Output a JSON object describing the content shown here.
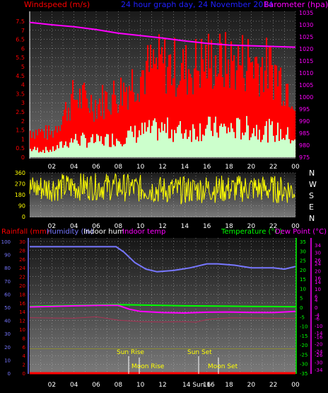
{
  "colors": {
    "wind_axis": "#ff0000",
    "baro_axis": "#ff00ff",
    "title": "#2020ff",
    "x_ticks": "#ffffff",
    "dir_axis": "#ffff00",
    "compass": "#ffffff",
    "rain": "#ff0000",
    "humidity": "#7777ff",
    "indoor_hum": "#ffffff",
    "indoor_temp": "#ff00ff",
    "temperature": "#00ff00",
    "dewpoint": "#ff00ff",
    "left2_axis": "#ff0000",
    "hum_axis": "#7777ff",
    "temp_axis": "#00ff00",
    "dew_axis": "#ff00ff",
    "astro": "#ffff00"
  },
  "labels": {
    "wind": "Windspeed (m/s)",
    "title": "24 hour graph day, 24 November 2014",
    "baro": "Barometer (hpa)",
    "rain": "Rainfall (mm)",
    "humidity": "Humidity (%)",
    "indoor_hum": "Indoor hum",
    "indoor_temp": "Indoor temp",
    "temperature": "Temperature (°C)",
    "dewpoint": "Dew Point (°C)"
  },
  "x_ticks": [
    "02",
    "04",
    "06",
    "08",
    "10",
    "12",
    "14",
    "16",
    "18",
    "20",
    "22",
    "00"
  ],
  "compass": [
    "N",
    "W",
    "S",
    "E",
    "N"
  ],
  "astro": {
    "sun_rise": "Sun Rise",
    "sun_set": "Sun Set",
    "moon_rise": "Moon Rise",
    "moon_set": "Moon Set",
    "sun_set_tick": "14 Sun 16"
  },
  "chart_data": [
    {
      "type": "area",
      "title": "24 hour graph day, 24 November 2014",
      "x_ticks": [
        "02",
        "04",
        "06",
        "08",
        "10",
        "12",
        "14",
        "16",
        "18",
        "20",
        "22",
        "00"
      ],
      "wind_axis": {
        "label": "Windspeed (m/s)",
        "ylim": [
          0,
          7.5
        ],
        "ticks": [
          "0",
          "0.5",
          "1",
          "1.5",
          "2",
          "2.5",
          "3",
          "3.5",
          "4",
          "4.5",
          "5",
          "5.5",
          "6",
          "6.5",
          "7",
          "7.5"
        ]
      },
      "baro_axis": {
        "label": "Barometer (hpa)",
        "ylim": [
          975,
          1035
        ],
        "ticks": [
          "975",
          "980",
          "985",
          "990",
          "995",
          "1000",
          "1005",
          "1010",
          "1015",
          "1020",
          "1025",
          "1030",
          "1035"
        ]
      },
      "series": [
        {
          "name": "Barometer",
          "x": [
            0,
            2,
            4,
            6,
            8,
            10,
            12,
            14,
            16,
            18,
            20,
            22,
            24
          ],
          "values": [
            1031,
            1030,
            1029.2,
            1028,
            1026.5,
            1025.5,
            1024.5,
            1023.3,
            1022.3,
            1021.6,
            1021.3,
            1021,
            1020.7
          ]
        },
        {
          "name": "Windspeed",
          "x": [
            0,
            2,
            4,
            6,
            8,
            10,
            12,
            14,
            16,
            18,
            20,
            22,
            24
          ],
          "values": [
            0.8,
            0.7,
            1.8,
            1.6,
            1.9,
            2.5,
            2.8,
            2.6,
            2.9,
            2.8,
            2.9,
            2.6,
            1.9
          ]
        }
      ]
    },
    {
      "type": "scatter",
      "x_ticks": [
        "02",
        "04",
        "06",
        "08",
        "10",
        "12",
        "14",
        "16",
        "18",
        "20",
        "22",
        "00"
      ],
      "y_axis": {
        "ylim": [
          0,
          360
        ],
        "ticks": [
          "0",
          "90",
          "180",
          "270",
          "360"
        ]
      },
      "compass": [
        "N",
        "W",
        "S",
        "E",
        "N"
      ],
      "series": [
        {
          "name": "Wind direction",
          "x": [
            0,
            2,
            4,
            6,
            8,
            10,
            12,
            14,
            16,
            18,
            20,
            22,
            24
          ],
          "values": [
            230,
            240,
            245,
            250,
            245,
            230,
            220,
            215,
            230,
            225,
            235,
            225,
            215
          ]
        }
      ]
    },
    {
      "type": "line",
      "x_ticks": [
        "02",
        "04",
        "06",
        "08",
        "10",
        "12",
        "14",
        "16",
        "18",
        "20",
        "22",
        "00"
      ],
      "rain_axis": {
        "label": "Rainfall (mm)",
        "ylim": [
          0,
          30
        ],
        "ticks": [
          "0",
          "2",
          "4",
          "6",
          "8",
          "10",
          "12",
          "14",
          "16",
          "18",
          "20",
          "22",
          "24",
          "26",
          "28",
          "30"
        ]
      },
      "humidity_axis": {
        "label": "Humidity (%)",
        "ylim": [
          0,
          100
        ],
        "ticks": [
          "0",
          "10",
          "20",
          "30",
          "40",
          "50",
          "60",
          "70",
          "80",
          "90",
          "100"
        ]
      },
      "temp_axis": {
        "label": "Temperature (°C)",
        "ylim": [
          -35,
          35
        ],
        "ticks": [
          "-35",
          "-30",
          "-25",
          "-20",
          "-15",
          "-10",
          "-5",
          "0",
          "5",
          "10",
          "15",
          "20",
          "25",
          "30",
          "35"
        ]
      },
      "dew_axis": {
        "label": "Dew Point (°C)",
        "ylim": [
          -36,
          36
        ],
        "ticks": [
          "-36",
          "-34",
          "-30",
          "-26",
          "-24",
          "-20",
          "-16",
          "-14",
          "-10",
          "-6",
          "-4",
          "0",
          "4",
          "6",
          "10",
          "14",
          "16",
          "20",
          "24",
          "26",
          "30",
          "34",
          "36"
        ]
      },
      "series": [
        {
          "name": "Humidity",
          "x": [
            0,
            2,
            4,
            6,
            7.8,
            8.5,
            9.5,
            10.5,
            11.5,
            13,
            14.5,
            16,
            17,
            18.5,
            20,
            22,
            23,
            24
          ],
          "values": [
            96,
            96,
            96,
            96,
            96,
            92,
            84,
            79,
            77,
            78,
            80,
            83,
            83,
            82,
            80,
            80,
            79,
            81
          ]
        },
        {
          "name": "Temperature",
          "x": [
            0,
            2,
            4,
            6,
            8,
            10,
            12,
            14,
            16,
            18,
            20,
            22,
            24
          ],
          "values": [
            0.5,
            0.8,
            1,
            1.2,
            1.4,
            1.2,
            1.0,
            0.8,
            0.7,
            0.6,
            0.5,
            0.4,
            0.3
          ]
        },
        {
          "name": "Dew Point",
          "x": [
            0,
            2,
            4,
            6,
            8,
            9,
            10,
            12,
            14,
            16,
            18,
            20,
            22,
            24
          ],
          "values": [
            0.2,
            0.5,
            0.8,
            1.0,
            1.0,
            -1,
            -2.2,
            -2.8,
            -3,
            -2.6,
            -2.5,
            -2.7,
            -2.8,
            -2.2
          ]
        },
        {
          "name": "Indoor temp",
          "x": [
            0,
            2,
            4,
            6,
            8,
            10,
            12,
            14,
            15,
            16,
            18,
            20,
            22,
            24
          ],
          "values": [
            -5.5,
            -5.7,
            -5.8,
            -5,
            -6.8,
            -7.6,
            -7.8,
            -7.6,
            -7.9,
            -6.5,
            -5.6,
            -5.7,
            -5.8,
            -5.9
          ]
        },
        {
          "name": "Indoor hum",
          "x": [
            0,
            24
          ],
          "values": [
            -22,
            -22
          ]
        },
        {
          "name": "Rainfall",
          "x": [
            0,
            24
          ],
          "values": [
            0,
            0
          ]
        }
      ]
    }
  ]
}
